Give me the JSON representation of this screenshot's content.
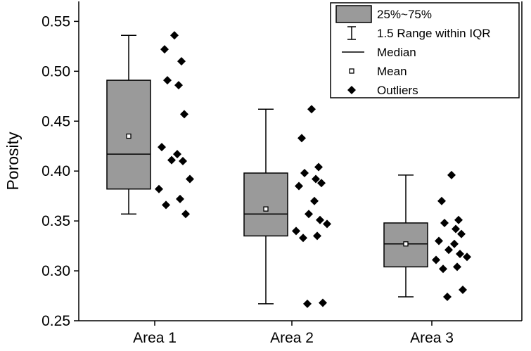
{
  "chart_data": {
    "type": "box",
    "ylabel": "Porosity",
    "xlabel": "",
    "ylim": [
      0.25,
      0.57
    ],
    "yticks": [
      0.25,
      0.3,
      0.35,
      0.4,
      0.45,
      0.5,
      0.55
    ],
    "ytick_labels": [
      "0.25",
      "0.30",
      "0.35",
      "0.40",
      "0.45",
      "0.50",
      "0.55"
    ],
    "categories": [
      "Area 1",
      "Area 2",
      "Area 3"
    ],
    "boxes": [
      {
        "name": "Area 1",
        "whisker_low": 0.357,
        "q1": 0.382,
        "median": 0.417,
        "q3": 0.491,
        "whisker_high": 0.536,
        "mean": 0.435,
        "points": [
          0.536,
          0.522,
          0.51,
          0.491,
          0.486,
          0.457,
          0.424,
          0.417,
          0.411,
          0.41,
          0.392,
          0.382,
          0.372,
          0.366,
          0.357
        ]
      },
      {
        "name": "Area 2",
        "whisker_low": 0.267,
        "q1": 0.335,
        "median": 0.357,
        "q3": 0.398,
        "whisker_high": 0.462,
        "mean": 0.362,
        "points": [
          0.462,
          0.433,
          0.404,
          0.398,
          0.392,
          0.388,
          0.385,
          0.37,
          0.357,
          0.351,
          0.347,
          0.34,
          0.335,
          0.333,
          0.268,
          0.267
        ]
      },
      {
        "name": "Area 3",
        "whisker_low": 0.274,
        "q1": 0.304,
        "median": 0.327,
        "q3": 0.348,
        "whisker_high": 0.396,
        "mean": 0.327,
        "points": [
          0.396,
          0.37,
          0.351,
          0.348,
          0.342,
          0.337,
          0.33,
          0.327,
          0.321,
          0.317,
          0.314,
          0.311,
          0.304,
          0.302,
          0.281,
          0.274
        ]
      }
    ],
    "legend": {
      "position": "top-right",
      "entries": [
        {
          "label": "25%~75%",
          "symbol": "box"
        },
        {
          "label": "1.5 Range within IQR",
          "symbol": "whisker"
        },
        {
          "label": "Median",
          "symbol": "line"
        },
        {
          "label": "Mean",
          "symbol": "small-square"
        },
        {
          "label": "Outliers",
          "symbol": "diamond"
        }
      ]
    },
    "colors": {
      "box_fill": "#9a9a9a",
      "line": "#000000",
      "marker": "#000000",
      "background": "#ffffff"
    }
  }
}
